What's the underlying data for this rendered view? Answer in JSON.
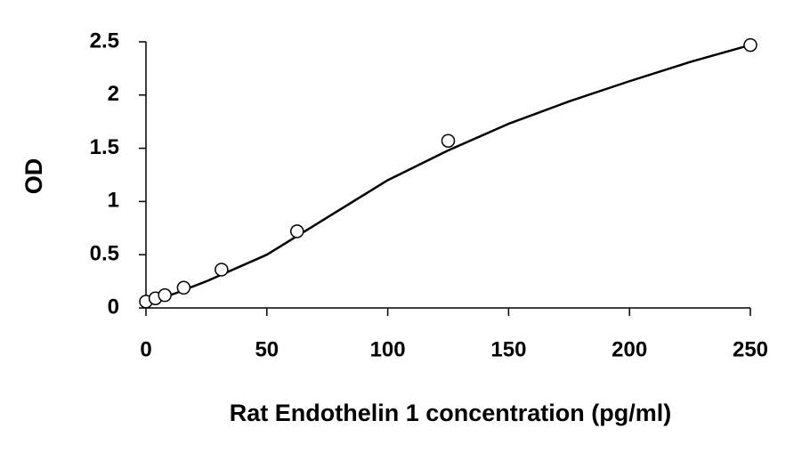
{
  "chart_data": {
    "type": "scatter",
    "x_label": "Rat Endothelin 1 concentration (pg/ml)",
    "y_label": "OD",
    "x": [
      0,
      3.9,
      7.8,
      15.6,
      31.25,
      62.5,
      125,
      250
    ],
    "values": [
      0.06,
      0.09,
      0.12,
      0.19,
      0.36,
      0.72,
      1.57,
      2.47
    ],
    "marker_color": "#000000",
    "fit": {
      "x": [
        0,
        12.5,
        25,
        50,
        75,
        100,
        125,
        150,
        175,
        200,
        225,
        250
      ],
      "values": [
        0.04,
        0.14,
        0.25,
        0.5,
        0.85,
        1.2,
        1.48,
        1.73,
        1.94,
        2.13,
        2.31,
        2.47
      ],
      "color": "#000000"
    },
    "xlim": [
      0,
      250
    ],
    "xticks": [
      0,
      50,
      100,
      150,
      200,
      250
    ],
    "ylim": [
      0,
      2.5
    ],
    "yticks": [
      0,
      0.5,
      1,
      1.5,
      2,
      2.5
    ],
    "grid": false
  }
}
